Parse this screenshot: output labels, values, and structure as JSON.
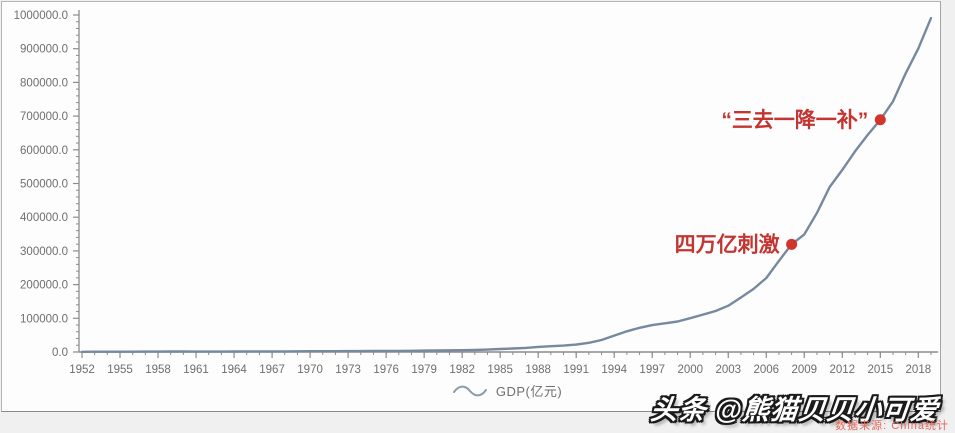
{
  "colors": {
    "line": "#76899e",
    "axis": "#8c8c8c",
    "tick_label": "#6e6e6e",
    "annotation": "#c23531",
    "dot": "#d1352c"
  },
  "legend_icon": "wave-line-icon",
  "watermark": {
    "text": "头条 @熊猫贝贝小可爱"
  },
  "source_note": "数据来源: China统计",
  "chart_data": {
    "type": "line",
    "title": "",
    "xlabel": "",
    "ylabel": "",
    "legend_label": "GDP(亿元)",
    "legend_position": "bottom-center",
    "grid": false,
    "xlim": [
      1952,
      2019
    ],
    "ylim": [
      0,
      1000000
    ],
    "x_ticks": [
      1952,
      1955,
      1958,
      1961,
      1964,
      1967,
      1970,
      1973,
      1976,
      1979,
      1982,
      1985,
      1988,
      1991,
      1994,
      1997,
      2000,
      2003,
      2006,
      2009,
      2012,
      2015,
      2018
    ],
    "x_minor_step": 1,
    "y_ticks": [
      0,
      100000,
      200000,
      300000,
      400000,
      500000,
      600000,
      700000,
      800000,
      900000,
      1000000
    ],
    "y_tick_labels": [
      "0.0",
      "100000.0",
      "200000.0",
      "300000.0",
      "400000.0",
      "500000.0",
      "600000.0",
      "700000.0",
      "800000.0",
      "900000.0",
      "1000000.0"
    ],
    "y_minor_step": 20000,
    "series": [
      {
        "name": "GDP(亿元)",
        "x": [
          1952,
          1953,
          1954,
          1955,
          1956,
          1957,
          1958,
          1959,
          1960,
          1961,
          1962,
          1963,
          1964,
          1965,
          1966,
          1967,
          1968,
          1969,
          1970,
          1971,
          1972,
          1973,
          1974,
          1975,
          1976,
          1977,
          1978,
          1979,
          1980,
          1981,
          1982,
          1983,
          1984,
          1985,
          1986,
          1987,
          1988,
          1989,
          1990,
          1991,
          1992,
          1993,
          1994,
          1995,
          1996,
          1997,
          1998,
          1999,
          2000,
          2001,
          2002,
          2003,
          2004,
          2005,
          2006,
          2007,
          2008,
          2009,
          2010,
          2011,
          2012,
          2013,
          2014,
          2015,
          2016,
          2017,
          2018,
          2019
        ],
        "y": [
          679,
          824,
          859,
          910,
          1028,
          1068,
          1307,
          1439,
          1457,
          1220,
          1149,
          1233,
          1454,
          1716,
          1868,
          1774,
          1723,
          1938,
          2253,
          2426,
          2518,
          2721,
          2790,
          2997,
          2944,
          3202,
          3679,
          4100,
          4588,
          4936,
          5323,
          5963,
          7226,
          9016,
          10309,
          12102,
          15101,
          17090,
          18873,
          22006,
          27195,
          35673,
          48638,
          61340,
          71814,
          79715,
          85196,
          90564,
          100280,
          110863,
          121717,
          137422,
          161840,
          187319,
          219439,
          270232,
          319516,
          349081,
          413030,
          489301,
          540367,
          595244,
          643974,
          689052,
          743586,
          827122,
          900309,
          990865
        ]
      }
    ],
    "annotations": [
      {
        "label": "四万亿刺激",
        "year": 2008,
        "value": 319516
      },
      {
        "label": "“三去一降一补”",
        "year": 2015,
        "value": 689052
      }
    ]
  }
}
